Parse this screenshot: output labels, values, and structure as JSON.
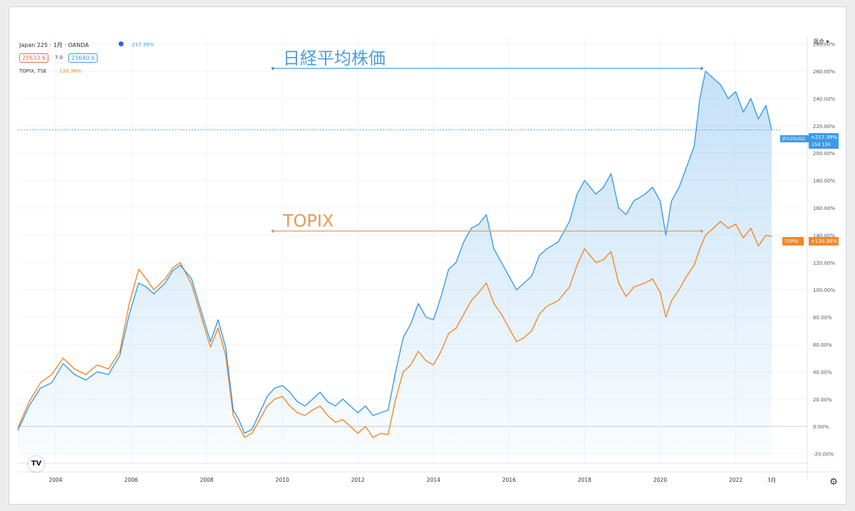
{
  "legend": {
    "symbol_line": "Japan 225 · 1月 · OANDA",
    "symbol_change": "217.39%",
    "bid": "25633.6",
    "spread": "7.0",
    "ask": "25640.6",
    "compare_line": "TOPIX, TSE",
    "compare_change": "139.38%"
  },
  "scale_menu": "混合 ▾",
  "badges": {
    "jp_name": "JP225USD",
    "jp_value": "+217.39%",
    "jp_countdown": "15d 15h",
    "topix_name": "TOPIX",
    "topix_value": "+139.38%"
  },
  "tv_logo": "TV",
  "settings_icon": "gear-icon",
  "colors": {
    "jp225": "#3d9ae8",
    "topix": "#f0882c",
    "grid": "#f0f3fa",
    "text": "#555555"
  },
  "chart_data": {
    "type": "line",
    "y_unit": "%",
    "y_ticks": [
      280,
      260,
      240,
      220,
      200,
      180,
      160,
      140,
      120,
      100,
      80,
      60,
      40,
      20,
      0,
      -20
    ],
    "y_tick_labels": [
      "280.00%",
      "260.00%",
      "240.00%",
      "220.00%",
      "200.00%",
      "180.00%",
      "160.00%",
      "140.00%",
      "120.00%",
      "100.00%",
      "80.00%",
      "60.00%",
      "40.00%",
      "20.00%",
      "0.00%",
      "-20.00%"
    ],
    "ylim": [
      -27,
      285
    ],
    "xlim": [
      2003.0,
      2022.95
    ],
    "x_ticks": [
      {
        "x": 2004,
        "label": "2004"
      },
      {
        "x": 2006,
        "label": "2006"
      },
      {
        "x": 2008,
        "label": "2008"
      },
      {
        "x": 2010,
        "label": "2010"
      },
      {
        "x": 2012,
        "label": "2012"
      },
      {
        "x": 2014,
        "label": "2014"
      },
      {
        "x": 2016,
        "label": "2016"
      },
      {
        "x": 2018,
        "label": "2018"
      },
      {
        "x": 2020,
        "label": "2020"
      },
      {
        "x": 2022,
        "label": "2022"
      },
      {
        "x": 2022.95,
        "label": "3月"
      }
    ],
    "series": [
      {
        "name": "Japan 225",
        "color": "#3d9ae8",
        "fill": true,
        "points": [
          [
            2003.0,
            -3
          ],
          [
            2003.3,
            15
          ],
          [
            2003.6,
            28
          ],
          [
            2003.9,
            32
          ],
          [
            2004.2,
            46
          ],
          [
            2004.5,
            38
          ],
          [
            2004.8,
            34
          ],
          [
            2005.1,
            40
          ],
          [
            2005.4,
            38
          ],
          [
            2005.7,
            52
          ],
          [
            2005.95,
            82
          ],
          [
            2006.2,
            105
          ],
          [
            2006.4,
            102
          ],
          [
            2006.6,
            97
          ],
          [
            2006.9,
            105
          ],
          [
            2007.1,
            114
          ],
          [
            2007.3,
            118
          ],
          [
            2007.6,
            108
          ],
          [
            2007.9,
            80
          ],
          [
            2008.1,
            62
          ],
          [
            2008.3,
            78
          ],
          [
            2008.5,
            58
          ],
          [
            2008.7,
            12
          ],
          [
            2008.85,
            5
          ],
          [
            2009.0,
            -5
          ],
          [
            2009.2,
            -2
          ],
          [
            2009.4,
            10
          ],
          [
            2009.6,
            22
          ],
          [
            2009.8,
            28
          ],
          [
            2010.0,
            30
          ],
          [
            2010.2,
            25
          ],
          [
            2010.4,
            18
          ],
          [
            2010.6,
            15
          ],
          [
            2010.8,
            20
          ],
          [
            2011.0,
            25
          ],
          [
            2011.2,
            18
          ],
          [
            2011.4,
            15
          ],
          [
            2011.6,
            20
          ],
          [
            2011.8,
            15
          ],
          [
            2012.0,
            10
          ],
          [
            2012.2,
            15
          ],
          [
            2012.4,
            8
          ],
          [
            2012.6,
            10
          ],
          [
            2012.8,
            12
          ],
          [
            2013.0,
            40
          ],
          [
            2013.2,
            65
          ],
          [
            2013.4,
            75
          ],
          [
            2013.6,
            90
          ],
          [
            2013.8,
            80
          ],
          [
            2014.0,
            78
          ],
          [
            2014.2,
            95
          ],
          [
            2014.4,
            115
          ],
          [
            2014.6,
            120
          ],
          [
            2014.8,
            135
          ],
          [
            2015.0,
            145
          ],
          [
            2015.2,
            148
          ],
          [
            2015.4,
            155
          ],
          [
            2015.6,
            130
          ],
          [
            2015.8,
            120
          ],
          [
            2016.0,
            110
          ],
          [
            2016.2,
            100
          ],
          [
            2016.4,
            105
          ],
          [
            2016.6,
            110
          ],
          [
            2016.8,
            125
          ],
          [
            2017.0,
            130
          ],
          [
            2017.3,
            135
          ],
          [
            2017.6,
            150
          ],
          [
            2017.8,
            170
          ],
          [
            2018.0,
            180
          ],
          [
            2018.3,
            170
          ],
          [
            2018.5,
            175
          ],
          [
            2018.7,
            185
          ],
          [
            2018.9,
            160
          ],
          [
            2019.1,
            155
          ],
          [
            2019.3,
            165
          ],
          [
            2019.6,
            170
          ],
          [
            2019.8,
            175
          ],
          [
            2020.0,
            165
          ],
          [
            2020.15,
            140
          ],
          [
            2020.3,
            165
          ],
          [
            2020.5,
            175
          ],
          [
            2020.7,
            190
          ],
          [
            2020.9,
            205
          ],
          [
            2021.05,
            240
          ],
          [
            2021.2,
            260
          ],
          [
            2021.4,
            255
          ],
          [
            2021.6,
            250
          ],
          [
            2021.8,
            240
          ],
          [
            2022.0,
            245
          ],
          [
            2022.2,
            230
          ],
          [
            2022.4,
            240
          ],
          [
            2022.6,
            225
          ],
          [
            2022.8,
            235
          ],
          [
            2022.95,
            217
          ]
        ]
      },
      {
        "name": "TOPIX",
        "color": "#f0882c",
        "fill": false,
        "points": [
          [
            2003.0,
            -1
          ],
          [
            2003.3,
            18
          ],
          [
            2003.6,
            32
          ],
          [
            2003.9,
            38
          ],
          [
            2004.2,
            50
          ],
          [
            2004.5,
            42
          ],
          [
            2004.8,
            38
          ],
          [
            2005.1,
            45
          ],
          [
            2005.4,
            42
          ],
          [
            2005.7,
            55
          ],
          [
            2005.95,
            90
          ],
          [
            2006.2,
            115
          ],
          [
            2006.4,
            108
          ],
          [
            2006.6,
            100
          ],
          [
            2006.9,
            108
          ],
          [
            2007.1,
            116
          ],
          [
            2007.3,
            120
          ],
          [
            2007.6,
            104
          ],
          [
            2007.9,
            76
          ],
          [
            2008.1,
            58
          ],
          [
            2008.3,
            72
          ],
          [
            2008.5,
            52
          ],
          [
            2008.7,
            8
          ],
          [
            2008.85,
            0
          ],
          [
            2009.0,
            -8
          ],
          [
            2009.2,
            -5
          ],
          [
            2009.4,
            5
          ],
          [
            2009.6,
            15
          ],
          [
            2009.8,
            20
          ],
          [
            2010.0,
            22
          ],
          [
            2010.2,
            15
          ],
          [
            2010.4,
            10
          ],
          [
            2010.6,
            8
          ],
          [
            2010.8,
            12
          ],
          [
            2011.0,
            15
          ],
          [
            2011.2,
            8
          ],
          [
            2011.4,
            3
          ],
          [
            2011.6,
            5
          ],
          [
            2011.8,
            0
          ],
          [
            2012.0,
            -5
          ],
          [
            2012.2,
            0
          ],
          [
            2012.4,
            -8
          ],
          [
            2012.6,
            -5
          ],
          [
            2012.8,
            -6
          ],
          [
            2013.0,
            20
          ],
          [
            2013.2,
            40
          ],
          [
            2013.4,
            45
          ],
          [
            2013.6,
            55
          ],
          [
            2013.8,
            48
          ],
          [
            2014.0,
            45
          ],
          [
            2014.2,
            55
          ],
          [
            2014.4,
            68
          ],
          [
            2014.6,
            72
          ],
          [
            2014.8,
            82
          ],
          [
            2015.0,
            92
          ],
          [
            2015.2,
            98
          ],
          [
            2015.4,
            105
          ],
          [
            2015.6,
            90
          ],
          [
            2015.8,
            82
          ],
          [
            2016.0,
            72
          ],
          [
            2016.2,
            62
          ],
          [
            2016.4,
            65
          ],
          [
            2016.6,
            70
          ],
          [
            2016.8,
            82
          ],
          [
            2017.0,
            88
          ],
          [
            2017.3,
            92
          ],
          [
            2017.6,
            102
          ],
          [
            2017.8,
            118
          ],
          [
            2018.0,
            130
          ],
          [
            2018.3,
            120
          ],
          [
            2018.5,
            122
          ],
          [
            2018.7,
            128
          ],
          [
            2018.9,
            105
          ],
          [
            2019.1,
            95
          ],
          [
            2019.3,
            102
          ],
          [
            2019.6,
            105
          ],
          [
            2019.8,
            108
          ],
          [
            2020.0,
            98
          ],
          [
            2020.15,
            80
          ],
          [
            2020.3,
            92
          ],
          [
            2020.5,
            100
          ],
          [
            2020.7,
            110
          ],
          [
            2020.9,
            118
          ],
          [
            2021.05,
            130
          ],
          [
            2021.2,
            140
          ],
          [
            2021.4,
            145
          ],
          [
            2021.6,
            150
          ],
          [
            2021.8,
            145
          ],
          [
            2022.0,
            148
          ],
          [
            2022.2,
            138
          ],
          [
            2022.4,
            145
          ],
          [
            2022.6,
            132
          ],
          [
            2022.8,
            140
          ],
          [
            2022.95,
            139
          ]
        ]
      }
    ],
    "annotations": [
      {
        "text": "日経平均株価",
        "color": "#4d9de0",
        "y": 262,
        "x_start": 2009.75,
        "x_end": 2021.1
      },
      {
        "text": "TOPIX",
        "color": "#e89a58",
        "y": 143,
        "x_start": 2009.75,
        "x_end": 2021.1
      }
    ]
  }
}
